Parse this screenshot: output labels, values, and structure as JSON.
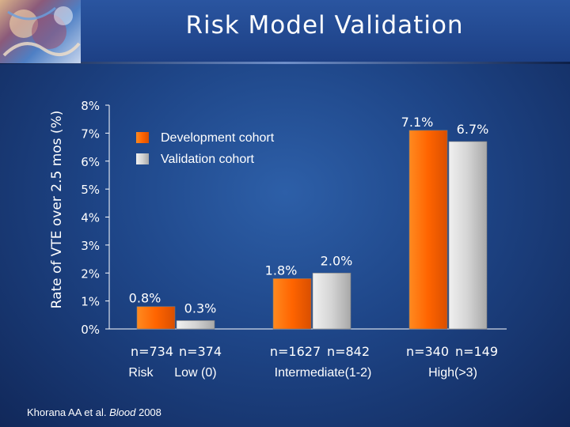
{
  "page": {
    "title": "Risk Model Validation",
    "citation": {
      "authors": "Khorana AA et al.",
      "journal": "Blood",
      "year": "2008"
    }
  },
  "colors": {
    "development": "#ff6a00",
    "validation": "#d4d4d4",
    "background": "#1e4587"
  },
  "chart_data": {
    "type": "bar",
    "title": "Risk Model Validation",
    "xlabel": "",
    "ylabel": "Rate of VTE over 2.5 mos (%)",
    "ylim": [
      0,
      8
    ],
    "yticks": [
      0,
      1,
      2,
      3,
      4,
      5,
      6,
      7,
      8
    ],
    "ytick_labels": [
      "0%",
      "1%",
      "2%",
      "3%",
      "4%",
      "5%",
      "6%",
      "7%",
      "8%"
    ],
    "categories": [
      "Low (0)",
      "Intermediate(1-2)",
      "High(>3)"
    ],
    "category_labels": [
      "Risk      Low (0)",
      "Intermediate(1-2)",
      "High(>3)"
    ],
    "series": [
      {
        "name": "Development cohort",
        "values": [
          0.8,
          1.8,
          7.1
        ],
        "value_labels": [
          "0.8%",
          "1.8%",
          "7.1%"
        ],
        "n_labels": [
          "n=734",
          "n=1627",
          "n=340"
        ]
      },
      {
        "name": "Validation cohort",
        "values": [
          0.3,
          2.0,
          6.7
        ],
        "value_labels": [
          "0.3%",
          "2.0%",
          "6.7%"
        ],
        "n_labels": [
          "n=374",
          "n=842",
          "n=149"
        ]
      }
    ],
    "legend": [
      "Development cohort",
      "Validation cohort"
    ],
    "legend_position": "top-left",
    "grid": false
  }
}
